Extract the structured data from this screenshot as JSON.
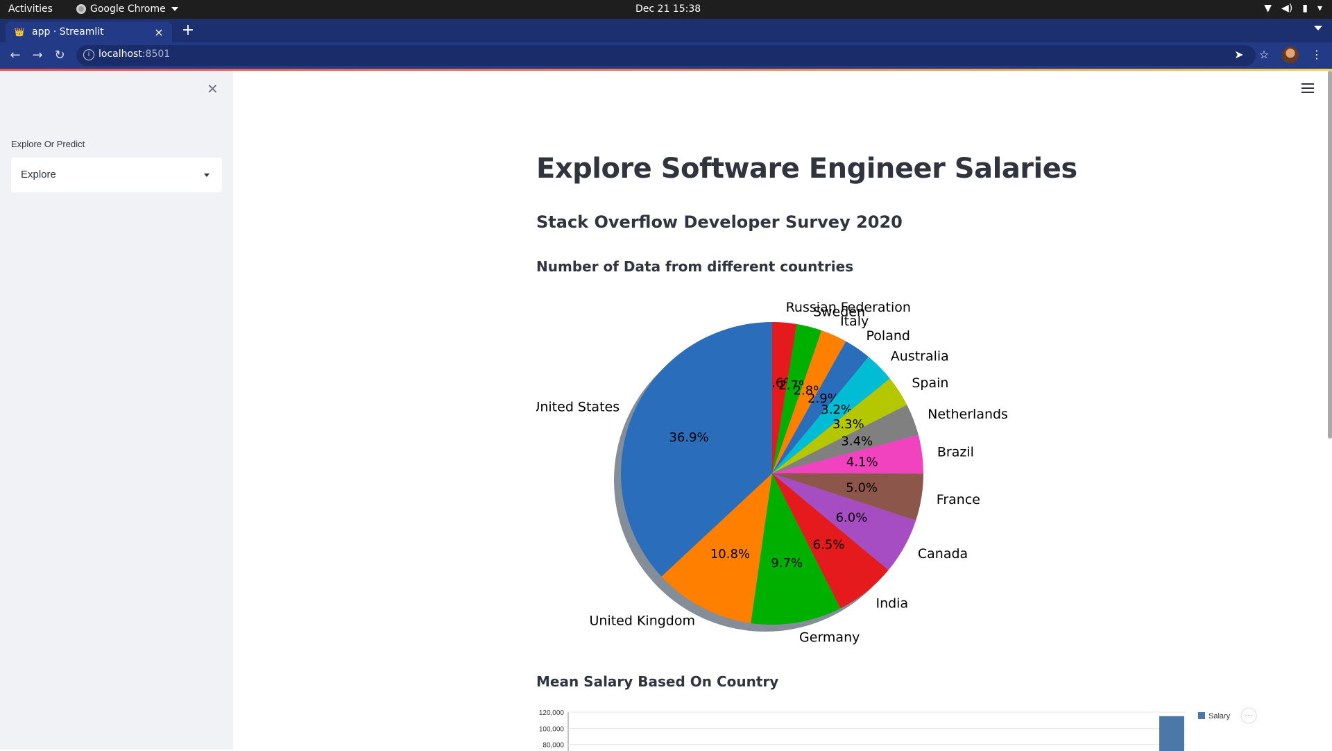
{
  "system_bar": {
    "activities": "Activities",
    "app_name": "Google Chrome",
    "clock": "Dec 21  15:38"
  },
  "browser": {
    "tab_title": "app · Streamlit",
    "url_host": "localhost",
    "url_port": ":8501"
  },
  "sidebar": {
    "select_label": "Explore Or Predict",
    "select_value": "Explore"
  },
  "main": {
    "title": "Explore Software Engineer Salaries",
    "subtitle": "Stack Overflow Developer Survey 2020",
    "pie_heading": "Number of Data from different countries",
    "bar_heading": "Mean Salary Based On Country"
  },
  "chart_data": [
    {
      "type": "pie",
      "title": "",
      "shadow": true,
      "start_angle": 90,
      "direction": "clockwise",
      "slices": [
        {
          "label": "Russian Federation",
          "pct": 2.6,
          "pct_label": "2.6%",
          "color": "#e41a1c"
        },
        {
          "label": "Sweden",
          "pct": 2.7,
          "pct_label": "2.7%",
          "color": "#00b000"
        },
        {
          "label": "Italy",
          "pct": 2.8,
          "pct_label": "2.8%",
          "color": "#ff7f00"
        },
        {
          "label": "Poland",
          "pct": 2.9,
          "pct_label": "2.9%",
          "color": "#2a6ebb"
        },
        {
          "label": "Australia",
          "pct": 3.2,
          "pct_label": "3.2%",
          "color": "#00bcd4"
        },
        {
          "label": "Spain",
          "pct": 3.3,
          "pct_label": "3.3%",
          "color": "#b5c700"
        },
        {
          "label": "Netherlands",
          "pct": 3.4,
          "pct_label": "3.4%",
          "color": "#808080"
        },
        {
          "label": "Brazil",
          "pct": 4.1,
          "pct_label": "4.1%",
          "color": "#f142c0"
        },
        {
          "label": "France",
          "pct": 5.0,
          "pct_label": "5.0%",
          "color": "#8c564b"
        },
        {
          "label": "Canada",
          "pct": 6.0,
          "pct_label": "6.0%",
          "color": "#a64dc4"
        },
        {
          "label": "India",
          "pct": 6.5,
          "pct_label": "6.5%",
          "color": "#e41a1c"
        },
        {
          "label": "Germany",
          "pct": 9.7,
          "pct_label": "9.7%",
          "color": "#00b000"
        },
        {
          "label": "United Kingdom",
          "pct": 10.8,
          "pct_label": "10.8%",
          "color": "#ff7f00"
        },
        {
          "label": "United States",
          "pct": 36.9,
          "pct_label": "36.9%",
          "color": "#2a6ebb"
        }
      ]
    },
    {
      "type": "bar",
      "title": "",
      "series": [
        {
          "name": "Salary",
          "color": "#4c78a8"
        }
      ],
      "visible_bar_value": 115000,
      "y_ticks": [
        "120,000",
        "100,000",
        "80,000"
      ],
      "ylim": [
        0,
        120000
      ]
    }
  ]
}
